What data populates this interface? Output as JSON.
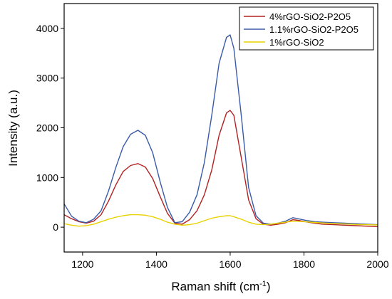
{
  "chart_data": {
    "type": "line",
    "xlabel": "Raman shift (cm",
    "xlabel_sup": "-1",
    "xlabel_end": ")",
    "ylabel": "Intensity (a.u.)",
    "xlim": [
      1150,
      2000
    ],
    "ylim": [
      -500,
      4500
    ],
    "xticks": [
      1200,
      1400,
      1600,
      1800,
      2000
    ],
    "yticks": [
      0,
      1000,
      2000,
      3000,
      4000
    ],
    "grid": false,
    "legend_position": "top-right",
    "series": [
      {
        "name": "4%rGO-SiO2-P2O5",
        "color": "#b22222",
        "x": [
          1150,
          1170,
          1190,
          1210,
          1230,
          1250,
          1270,
          1290,
          1310,
          1330,
          1350,
          1370,
          1390,
          1410,
          1430,
          1450,
          1470,
          1490,
          1510,
          1530,
          1550,
          1570,
          1590,
          1600,
          1610,
          1630,
          1650,
          1670,
          1690,
          1710,
          1730,
          1750,
          1770,
          1790,
          1810,
          1830,
          1850,
          1880,
          1910,
          1940,
          1970,
          2000
        ],
        "values": [
          250,
          170,
          110,
          80,
          120,
          250,
          520,
          850,
          1120,
          1240,
          1280,
          1210,
          980,
          620,
          280,
          80,
          60,
          150,
          330,
          650,
          1150,
          1850,
          2300,
          2350,
          2250,
          1400,
          550,
          170,
          60,
          40,
          60,
          90,
          150,
          130,
          100,
          80,
          60,
          50,
          40,
          30,
          20,
          10
        ]
      },
      {
        "name": "1.1%rGO-SiO2-P2O5",
        "color": "#3a5ba8",
        "x": [
          1150,
          1170,
          1190,
          1210,
          1230,
          1250,
          1270,
          1290,
          1310,
          1330,
          1350,
          1370,
          1390,
          1410,
          1430,
          1450,
          1470,
          1490,
          1510,
          1530,
          1550,
          1570,
          1590,
          1600,
          1610,
          1630,
          1650,
          1670,
          1690,
          1710,
          1730,
          1750,
          1770,
          1790,
          1810,
          1830,
          1850,
          1880,
          1910,
          1940,
          1970,
          2000
        ],
        "values": [
          470,
          220,
          120,
          90,
          160,
          330,
          720,
          1200,
          1620,
          1870,
          1950,
          1850,
          1500,
          920,
          400,
          90,
          110,
          300,
          650,
          1300,
          2250,
          3300,
          3820,
          3870,
          3600,
          2250,
          800,
          230,
          80,
          60,
          80,
          120,
          190,
          160,
          130,
          110,
          100,
          90,
          80,
          70,
          60,
          50
        ]
      },
      {
        "name": "1%rGO-SiO2",
        "color": "#e8d200",
        "x": [
          1150,
          1170,
          1190,
          1210,
          1230,
          1250,
          1270,
          1290,
          1310,
          1330,
          1350,
          1370,
          1390,
          1410,
          1430,
          1450,
          1470,
          1490,
          1510,
          1530,
          1550,
          1570,
          1590,
          1600,
          1610,
          1630,
          1650,
          1670,
          1690,
          1710,
          1730,
          1750,
          1770,
          1790,
          1810,
          1830,
          1850,
          1880,
          1910,
          1940,
          1970,
          2000
        ],
        "values": [
          70,
          40,
          20,
          30,
          60,
          110,
          160,
          200,
          230,
          250,
          250,
          240,
          210,
          160,
          100,
          60,
          40,
          50,
          80,
          130,
          180,
          210,
          230,
          230,
          210,
          160,
          100,
          60,
          50,
          60,
          80,
          100,
          120,
          115,
          105,
          95,
          85,
          75,
          65,
          55,
          50,
          45
        ]
      }
    ]
  }
}
